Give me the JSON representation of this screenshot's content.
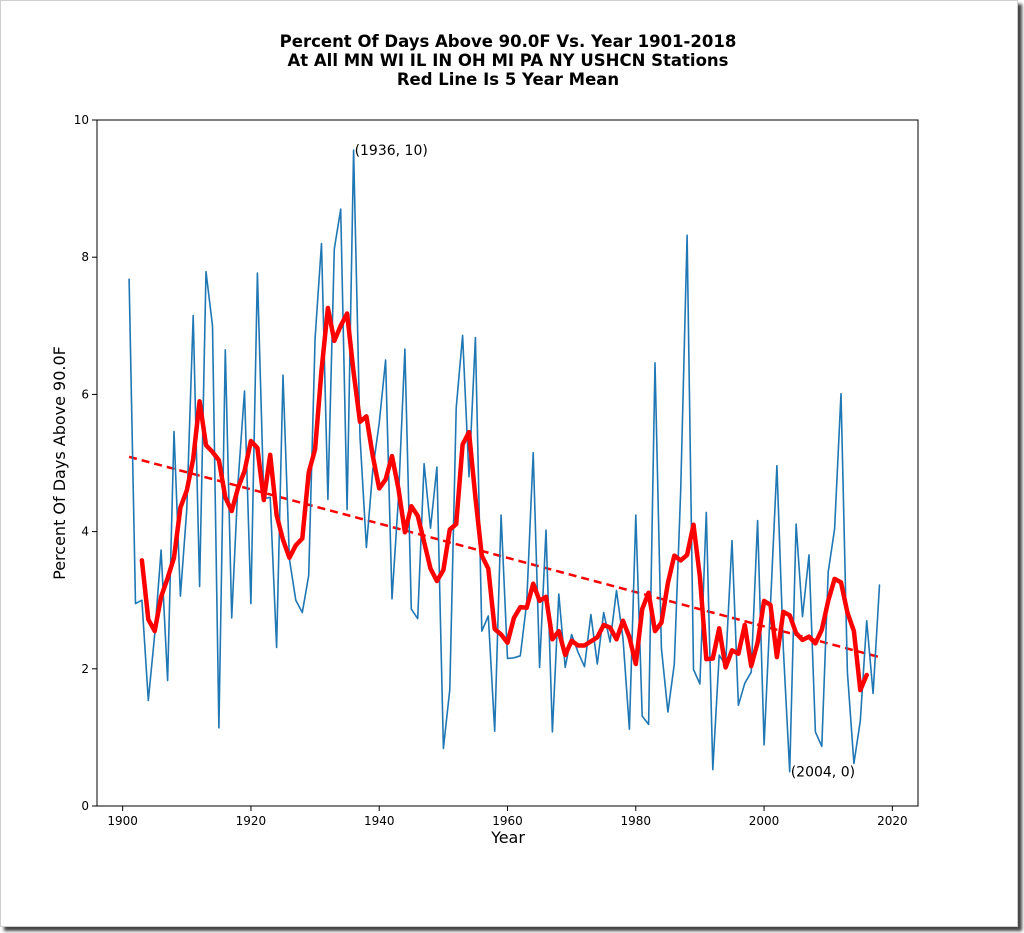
{
  "chart_data": {
    "type": "line",
    "title_lines": [
      "Percent Of Days Above 90.0F Vs. Year 1901-2018",
      "At All MN WI IL IN OH MI PA NY USHCN Stations",
      "Red Line Is 5 Year Mean"
    ],
    "xlabel": "Year",
    "ylabel": "Percent Of Days Above 90.0F",
    "xlim": [
      1896,
      2024
    ],
    "ylim": [
      0,
      10
    ],
    "xticks": [
      1900,
      1920,
      1940,
      1960,
      1980,
      2000,
      2020
    ],
    "yticks": [
      0,
      2,
      4,
      6,
      8,
      10
    ],
    "grid": false,
    "colors": {
      "annual": "#1f77b4",
      "mean": "#ff0000",
      "trend": "#ff0000"
    },
    "series": [
      {
        "key": "annual",
        "x": [
          1901,
          1902,
          1903,
          1904,
          1905,
          1906,
          1907,
          1908,
          1909,
          1910,
          1911,
          1912,
          1913,
          1914,
          1915,
          1916,
          1917,
          1918,
          1919,
          1920,
          1921,
          1922,
          1923,
          1924,
          1925,
          1926,
          1927,
          1928,
          1929,
          1930,
          1931,
          1932,
          1933,
          1934,
          1935,
          1936,
          1937,
          1938,
          1939,
          1940,
          1941,
          1942,
          1943,
          1944,
          1945,
          1946,
          1947,
          1948,
          1949,
          1950,
          1951,
          1952,
          1953,
          1954,
          1955,
          1956,
          1957,
          1958,
          1959,
          1960,
          1961,
          1962,
          1963,
          1964,
          1965,
          1966,
          1967,
          1968,
          1969,
          1970,
          1971,
          1972,
          1973,
          1974,
          1975,
          1976,
          1977,
          1978,
          1979,
          1980,
          1981,
          1982,
          1983,
          1984,
          1985,
          1986,
          1987,
          1988,
          1989,
          1990,
          1991,
          1992,
          1993,
          1994,
          1995,
          1996,
          1997,
          1998,
          1999,
          2000,
          2001,
          2002,
          2003,
          2004,
          2005,
          2006,
          2007,
          2008,
          2009,
          2010,
          2011,
          2012,
          2013,
          2014,
          2015,
          2016,
          2017,
          2018
        ],
        "values": [
          7.68,
          2.95,
          3.0,
          1.54,
          2.5,
          3.73,
          1.83,
          5.46,
          3.06,
          4.33,
          7.15,
          3.2,
          7.79,
          7.0,
          1.14,
          6.65,
          2.74,
          4.73,
          6.05,
          2.95,
          7.77,
          4.48,
          4.5,
          2.31,
          6.28,
          3.6,
          3.0,
          2.82,
          3.36,
          6.82,
          8.2,
          4.47,
          8.12,
          8.7,
          4.32,
          9.56,
          5.38,
          3.77,
          4.9,
          5.58,
          6.5,
          3.02,
          4.5,
          6.66,
          2.87,
          2.73,
          4.99,
          4.05,
          4.94,
          0.84,
          1.7,
          5.8,
          6.86,
          4.8,
          6.83,
          2.55,
          2.77,
          1.09,
          4.24,
          2.15,
          2.16,
          2.19,
          2.96,
          5.15,
          2.02,
          4.02,
          1.08,
          3.09,
          2.02,
          2.5,
          2.24,
          2.03,
          2.79,
          2.07,
          2.82,
          2.39,
          3.14,
          2.44,
          1.12,
          4.24,
          1.31,
          1.19,
          6.46,
          2.3,
          1.37,
          2.07,
          4.6,
          8.32,
          1.99,
          1.78,
          4.28,
          0.53,
          2.2,
          2.05,
          3.87,
          1.47,
          1.79,
          1.95,
          4.16,
          0.89,
          2.94,
          4.96,
          2.3,
          0.5,
          4.11,
          2.76,
          3.66,
          1.08,
          0.87,
          3.41,
          4.04,
          6.01,
          1.95,
          0.62,
          1.24,
          2.7,
          1.64,
          3.22
        ]
      },
      {
        "key": "mean",
        "x": [
          1903,
          1904,
          1905,
          1906,
          1907,
          1908,
          1909,
          1910,
          1911,
          1912,
          1913,
          1914,
          1915,
          1916,
          1917,
          1918,
          1919,
          1920,
          1921,
          1922,
          1923,
          1924,
          1925,
          1926,
          1927,
          1928,
          1929,
          1930,
          1931,
          1932,
          1933,
          1934,
          1935,
          1936,
          1937,
          1938,
          1939,
          1940,
          1941,
          1942,
          1943,
          1944,
          1945,
          1946,
          1947,
          1948,
          1949,
          1950,
          1951,
          1952,
          1953,
          1954,
          1955,
          1956,
          1957,
          1958,
          1959,
          1960,
          1961,
          1962,
          1963,
          1964,
          1965,
          1966,
          1967,
          1968,
          1969,
          1970,
          1971,
          1972,
          1973,
          1974,
          1975,
          1976,
          1977,
          1978,
          1979,
          1980,
          1981,
          1982,
          1983,
          1984,
          1985,
          1986,
          1987,
          1988,
          1989,
          1990,
          1991,
          1992,
          1993,
          1994,
          1995,
          1996,
          1997,
          1998,
          1999,
          2000,
          2001,
          2002,
          2003,
          2004,
          2005,
          2006,
          2007,
          2008,
          2009,
          2010,
          2011,
          2012,
          2013,
          2014,
          2015,
          2016
        ],
        "values": [
          3.58,
          2.72,
          2.55,
          3.05,
          3.32,
          3.62,
          4.35,
          4.6,
          5.06,
          5.9,
          5.26,
          5.16,
          5.04,
          4.5,
          4.3,
          4.64,
          4.88,
          5.32,
          5.22,
          4.46,
          5.12,
          4.24,
          3.88,
          3.62,
          3.8,
          3.9,
          4.86,
          5.2,
          6.35,
          7.26,
          6.78,
          7.0,
          7.18,
          6.32,
          5.6,
          5.68,
          5.1,
          4.63,
          4.76,
          5.1,
          4.62,
          3.99,
          4.37,
          4.23,
          3.85,
          3.46,
          3.28,
          3.44,
          4.03,
          4.11,
          5.27,
          5.45,
          4.5,
          3.65,
          3.46,
          2.58,
          2.5,
          2.38,
          2.74,
          2.9,
          2.89,
          3.24,
          2.99,
          3.05,
          2.43,
          2.55,
          2.2,
          2.41,
          2.34,
          2.34,
          2.4,
          2.46,
          2.64,
          2.6,
          2.43,
          2.7,
          2.46,
          2.07,
          2.87,
          3.11,
          2.55,
          2.67,
          3.25,
          3.65,
          3.58,
          3.66,
          4.1,
          3.34,
          2.14,
          2.15,
          2.59,
          2.02,
          2.27,
          2.22,
          2.64,
          2.04,
          2.38,
          2.99,
          2.93,
          2.17,
          2.83,
          2.78,
          2.52,
          2.42,
          2.47,
          2.37,
          2.57,
          2.99,
          3.31,
          3.26,
          2.82,
          2.55,
          1.69,
          1.91
        ]
      }
    ],
    "trendline": {
      "x": [
        1901,
        2018
      ],
      "y": [
        5.09,
        2.17
      ],
      "style": "dashed"
    },
    "annotations": [
      {
        "text": "(1936, 10)",
        "x": 1936,
        "y": 9.56
      },
      {
        "text": "(2004, 0)",
        "x": 2004,
        "y": 0.5
      }
    ]
  }
}
